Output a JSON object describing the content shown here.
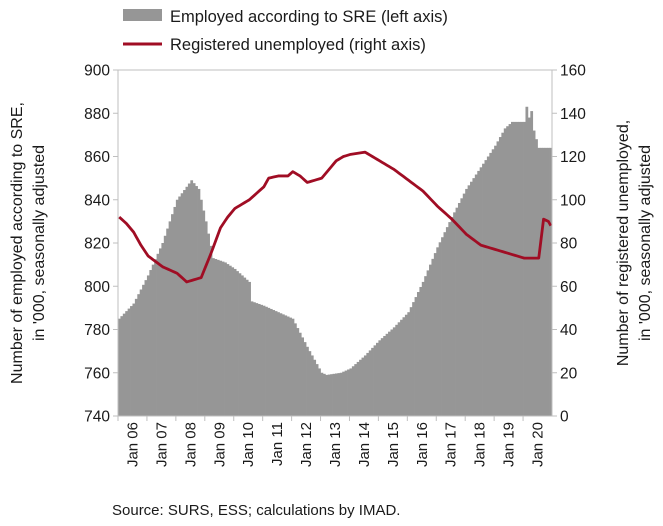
{
  "chart_data": {
    "type": "bar+line",
    "legend": {
      "position": "top",
      "items": [
        {
          "label": "Employed according to SRE (left axis)",
          "kind": "bar",
          "color": "#969696"
        },
        {
          "label": "Registered unemployed (right axis)",
          "kind": "line",
          "color": "#a00d24"
        }
      ]
    },
    "y_left": {
      "label_line1": "Number of employed according to SRE,",
      "label_line2": "in '000, seasonally adjusted",
      "min": 740,
      "max": 900,
      "step": 20,
      "ticks": [
        "740",
        "760",
        "780",
        "800",
        "820",
        "840",
        "860",
        "880",
        "900"
      ]
    },
    "y_right": {
      "label_line1": "Number of registered unemployed,",
      "label_line2": "in '000, seasonally adjusted",
      "min": 0,
      "max": 160,
      "step": 20,
      "ticks": [
        "0",
        "20",
        "40",
        "60",
        "80",
        "100",
        "120",
        "140",
        "160"
      ]
    },
    "x": {
      "start": "2006-01",
      "months": 180,
      "tick_labels": [
        "Jan 06",
        "Jan 07",
        "Jan 08",
        "Jan 09",
        "Jan 10",
        "Jan 11",
        "Jan 12",
        "Jan 13",
        "Jan 14",
        "Jan 15",
        "Jan 16",
        "Jan 17",
        "Jan 18",
        "Jan 19",
        "Jan 20"
      ]
    },
    "grid": false,
    "series": [
      {
        "name": "Employed according to SRE (left axis)",
        "axis": "left",
        "type": "bar",
        "monthly_keypoints": [
          [
            0,
            785
          ],
          [
            6,
            792
          ],
          [
            12,
            805
          ],
          [
            18,
            820
          ],
          [
            24,
            840
          ],
          [
            30,
            849
          ],
          [
            33,
            845
          ],
          [
            36,
            830
          ],
          [
            39,
            813
          ],
          [
            44,
            811
          ],
          [
            48,
            808
          ],
          [
            54,
            802
          ],
          [
            55,
            793
          ],
          [
            60,
            791
          ],
          [
            66,
            788
          ],
          [
            72,
            785
          ],
          [
            78,
            772
          ],
          [
            84,
            760
          ],
          [
            86,
            759
          ],
          [
            92,
            760
          ],
          [
            96,
            762
          ],
          [
            102,
            768
          ],
          [
            108,
            775
          ],
          [
            114,
            781
          ],
          [
            120,
            788
          ],
          [
            126,
            802
          ],
          [
            132,
            818
          ],
          [
            138,
            832
          ],
          [
            144,
            845
          ],
          [
            150,
            855
          ],
          [
            156,
            865
          ],
          [
            160,
            873
          ],
          [
            163,
            876
          ],
          [
            168,
            876
          ],
          [
            169,
            883
          ],
          [
            170,
            878
          ],
          [
            171,
            881
          ],
          [
            172,
            872
          ],
          [
            174,
            864
          ],
          [
            179,
            864
          ]
        ]
      },
      {
        "name": "Registered unemployed (right axis)",
        "axis": "right",
        "type": "line",
        "monthly_keypoints": [
          [
            0,
            92
          ],
          [
            3,
            89
          ],
          [
            6,
            85
          ],
          [
            9,
            79
          ],
          [
            12,
            74
          ],
          [
            18,
            69
          ],
          [
            24,
            66
          ],
          [
            28,
            62
          ],
          [
            31,
            63
          ],
          [
            34,
            64
          ],
          [
            38,
            75
          ],
          [
            42,
            87
          ],
          [
            45,
            92
          ],
          [
            48,
            96
          ],
          [
            54,
            100
          ],
          [
            60,
            106
          ],
          [
            62,
            110
          ],
          [
            66,
            111
          ],
          [
            70,
            111
          ],
          [
            72,
            113
          ],
          [
            75,
            111
          ],
          [
            78,
            108
          ],
          [
            84,
            110
          ],
          [
            90,
            118
          ],
          [
            93,
            120
          ],
          [
            96,
            121
          ],
          [
            102,
            122
          ],
          [
            108,
            118
          ],
          [
            114,
            114
          ],
          [
            120,
            109
          ],
          [
            126,
            104
          ],
          [
            132,
            97
          ],
          [
            138,
            91
          ],
          [
            144,
            84
          ],
          [
            150,
            79
          ],
          [
            156,
            77
          ],
          [
            162,
            75
          ],
          [
            168,
            73
          ],
          [
            174,
            73
          ],
          [
            176,
            91
          ],
          [
            178,
            90
          ],
          [
            179,
            88
          ]
        ]
      }
    ],
    "source": "Source: SURS, ESS; calculations by IMAD."
  }
}
